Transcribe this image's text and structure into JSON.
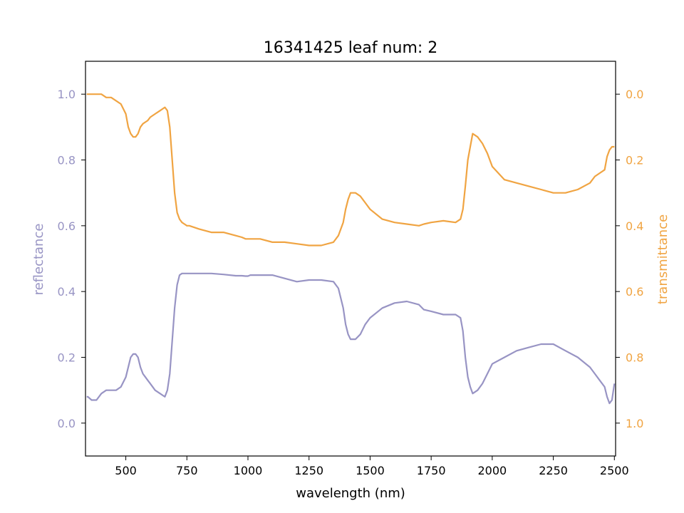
{
  "chart_data": {
    "type": "line",
    "title": "16341425 leaf num: 2",
    "xlabel": "wavelength (nm)",
    "ylabel_left": "reflectance",
    "ylabel_right": "transmittance",
    "xlim": [
      335,
      2505
    ],
    "ylim_left": [
      -0.1,
      1.1
    ],
    "ylim_right": [
      1.1,
      -0.1
    ],
    "right_axis_inverted": true,
    "grid": false,
    "colors": {
      "reflectance": "#9894c4",
      "transmittance": "#f0a442"
    },
    "x_ticks": [
      500,
      750,
      1000,
      1250,
      1500,
      1750,
      2000,
      2250,
      2500
    ],
    "x_tick_labels": [
      "500",
      "750",
      "1000",
      "1250",
      "1500",
      "1750",
      "2000",
      "2250",
      "2500"
    ],
    "y_left_ticks": [
      0.0,
      0.2,
      0.4,
      0.6,
      0.8,
      1.0
    ],
    "y_left_tick_labels": [
      "0.0",
      "0.2",
      "0.4",
      "0.6",
      "0.8",
      "1.0"
    ],
    "y_right_ticks": [
      0.0,
      0.2,
      0.4,
      0.6,
      0.8,
      1.0
    ],
    "y_right_tick_labels": [
      "0.0",
      "0.2",
      "0.4",
      "0.6",
      "0.8",
      "1.0"
    ],
    "series": [
      {
        "axis": "left",
        "x": [
          340,
          345,
          360,
          380,
          400,
          420,
          440,
          460,
          480,
          500,
          510,
          520,
          530,
          540,
          550,
          560,
          570,
          580,
          590,
          600,
          620,
          640,
          660,
          670,
          680,
          690,
          700,
          710,
          720,
          730,
          740,
          750,
          760,
          800,
          850,
          900,
          950,
          975,
          990,
          1000,
          1010,
          1050,
          1100,
          1150,
          1200,
          1250,
          1300,
          1350,
          1370,
          1390,
          1400,
          1410,
          1420,
          1440,
          1460,
          1480,
          1500,
          1550,
          1600,
          1650,
          1700,
          1720,
          1750,
          1800,
          1850,
          1870,
          1880,
          1890,
          1900,
          1910,
          1920,
          1940,
          1960,
          1980,
          2000,
          2050,
          2100,
          2150,
          2200,
          2250,
          2300,
          2350,
          2400,
          2420,
          2440,
          2460,
          2470,
          2480,
          2490,
          2500
        ],
        "y": [
          0.08,
          0.08,
          0.07,
          0.07,
          0.09,
          0.1,
          0.1,
          0.1,
          0.11,
          0.14,
          0.17,
          0.2,
          0.21,
          0.21,
          0.2,
          0.17,
          0.15,
          0.14,
          0.13,
          0.12,
          0.1,
          0.09,
          0.08,
          0.1,
          0.15,
          0.25,
          0.35,
          0.42,
          0.45,
          0.455,
          0.455,
          0.455,
          0.455,
          0.455,
          0.455,
          0.452,
          0.448,
          0.448,
          0.447,
          0.447,
          0.45,
          0.45,
          0.45,
          0.44,
          0.43,
          0.435,
          0.435,
          0.43,
          0.41,
          0.35,
          0.3,
          0.27,
          0.255,
          0.255,
          0.27,
          0.3,
          0.32,
          0.35,
          0.365,
          0.37,
          0.36,
          0.345,
          0.34,
          0.33,
          0.33,
          0.32,
          0.28,
          0.2,
          0.14,
          0.11,
          0.09,
          0.1,
          0.12,
          0.15,
          0.18,
          0.2,
          0.22,
          0.23,
          0.24,
          0.24,
          0.22,
          0.2,
          0.17,
          0.15,
          0.13,
          0.11,
          0.08,
          0.06,
          0.07,
          0.12
        ]
      },
      {
        "axis": "right",
        "x": [
          340,
          345,
          360,
          380,
          400,
          420,
          440,
          460,
          480,
          500,
          510,
          520,
          530,
          540,
          550,
          560,
          570,
          580,
          590,
          600,
          620,
          640,
          660,
          670,
          680,
          690,
          700,
          710,
          720,
          730,
          740,
          750,
          760,
          800,
          850,
          900,
          950,
          975,
          990,
          1000,
          1010,
          1050,
          1100,
          1150,
          1200,
          1250,
          1300,
          1350,
          1370,
          1390,
          1400,
          1410,
          1420,
          1440,
          1460,
          1480,
          1500,
          1550,
          1600,
          1650,
          1700,
          1720,
          1750,
          1800,
          1850,
          1870,
          1880,
          1890,
          1900,
          1910,
          1920,
          1940,
          1960,
          1980,
          2000,
          2050,
          2100,
          2150,
          2200,
          2250,
          2300,
          2350,
          2400,
          2420,
          2440,
          2460,
          2470,
          2480,
          2490,
          2500
        ],
        "y": [
          0.0,
          0.0,
          0.0,
          0.0,
          0.0,
          0.01,
          0.01,
          0.02,
          0.03,
          0.06,
          0.1,
          0.12,
          0.13,
          0.13,
          0.12,
          0.1,
          0.09,
          0.085,
          0.08,
          0.07,
          0.06,
          0.05,
          0.04,
          0.05,
          0.1,
          0.2,
          0.3,
          0.36,
          0.38,
          0.39,
          0.395,
          0.4,
          0.4,
          0.41,
          0.42,
          0.42,
          0.43,
          0.435,
          0.44,
          0.44,
          0.44,
          0.44,
          0.45,
          0.45,
          0.455,
          0.46,
          0.46,
          0.45,
          0.43,
          0.39,
          0.35,
          0.32,
          0.3,
          0.3,
          0.31,
          0.33,
          0.35,
          0.38,
          0.39,
          0.395,
          0.4,
          0.395,
          0.39,
          0.385,
          0.39,
          0.38,
          0.35,
          0.28,
          0.2,
          0.16,
          0.12,
          0.13,
          0.15,
          0.18,
          0.22,
          0.26,
          0.27,
          0.28,
          0.29,
          0.3,
          0.3,
          0.29,
          0.27,
          0.25,
          0.24,
          0.23,
          0.19,
          0.17,
          0.16,
          0.16
        ]
      }
    ]
  }
}
